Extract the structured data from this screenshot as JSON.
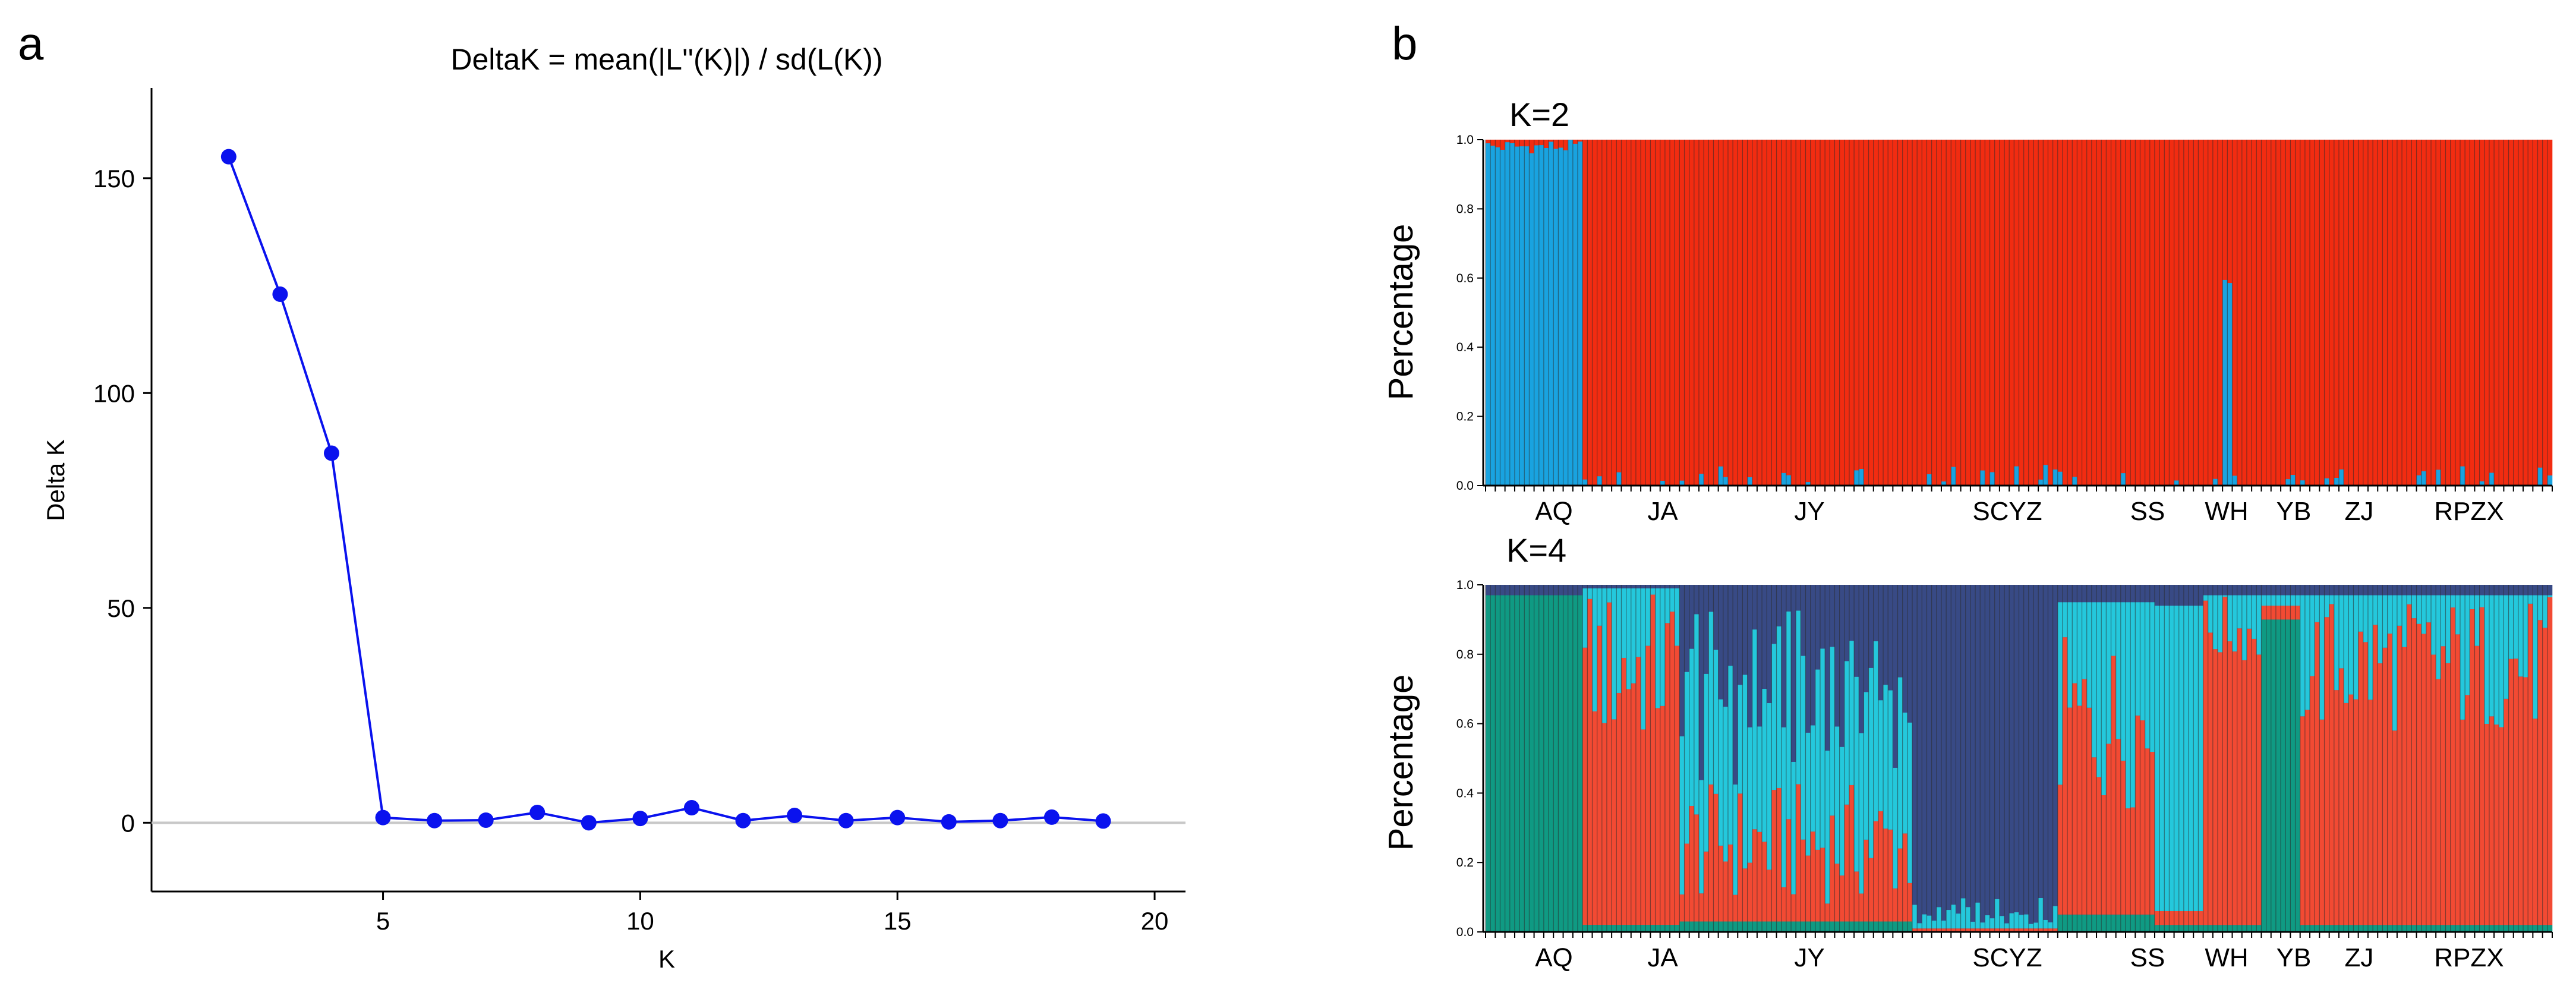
{
  "panels": {
    "a_label": "a",
    "b_label": "b"
  },
  "chart_data": [
    {
      "type": "line",
      "title": "DeltaK = mean(|L''(K)|) / sd(L(K))",
      "xlabel": "K",
      "ylabel": "Delta K",
      "x": [
        2,
        3,
        4,
        5,
        6,
        7,
        8,
        9,
        10,
        11,
        12,
        13,
        14,
        15,
        16,
        17,
        18,
        19
      ],
      "values": [
        155,
        123,
        86,
        1.2,
        0.5,
        0.6,
        2.4,
        0,
        1,
        3.5,
        0.5,
        1.7,
        0.5,
        1.2,
        0.2,
        0.5,
        1.3,
        0.4
      ],
      "xlim": [
        0.5,
        20.6
      ],
      "ylim": [
        -16,
        171
      ],
      "xticks": [
        5,
        10,
        15,
        20
      ],
      "yticks": [
        0,
        50,
        100,
        150
      ],
      "zero_line": true,
      "grid": false,
      "color": "#0a12ee"
    },
    {
      "type": "bar",
      "stacked": true,
      "k_label": "K=2",
      "ylabel": "Percentage",
      "ylim": [
        0,
        1
      ],
      "yticks": [
        "0.0",
        "0.2",
        "0.4",
        "0.6",
        "0.8",
        "1.0"
      ],
      "populations": [
        "AQ",
        "JA",
        "JY",
        "SCYZ",
        "SS",
        "WH",
        "YB",
        "ZJ",
        "RPZX"
      ],
      "cluster_colors": [
        "#19a3e0",
        "#f22c11"
      ]
    },
    {
      "type": "bar",
      "stacked": true,
      "k_label": "K=4",
      "ylabel": "Percentage",
      "ylim": [
        0,
        1
      ],
      "yticks": [
        "0.0",
        "0.2",
        "0.4",
        "0.6",
        "0.8",
        "1.0"
      ],
      "populations": [
        "AQ",
        "JA",
        "JY",
        "SCYZ",
        "SS",
        "WH",
        "YB",
        "ZJ",
        "RPZX"
      ],
      "cluster_colors": [
        "#0f9a83",
        "#f24a33",
        "#24c8dc",
        "#384a85"
      ]
    }
  ]
}
